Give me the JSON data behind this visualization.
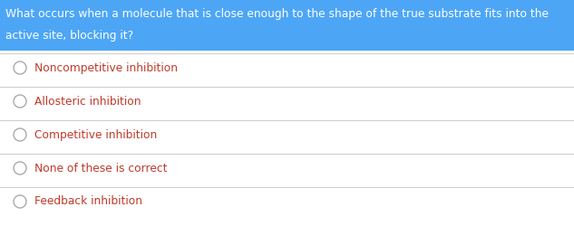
{
  "question_line1": "What occurs when a molecule that is close enough to the shape of the true substrate fits into the",
  "question_line2": "active site, blocking it?",
  "question_bg_color": "#4da6f5",
  "question_text_color": "#ffffff",
  "options": [
    "Noncompetitive inhibition",
    "Allosteric inhibition",
    "Competitive inhibition",
    "None of these is correct",
    "Feedback inhibition"
  ],
  "option_text_color": "#c0392b",
  "circle_edge_color": "#aaaaaa",
  "divider_color": "#cccccc",
  "background_color": "#ffffff",
  "question_fontsize": 8.8,
  "option_fontsize": 8.8,
  "fig_width": 6.33,
  "fig_height": 2.5,
  "dpi": 100
}
